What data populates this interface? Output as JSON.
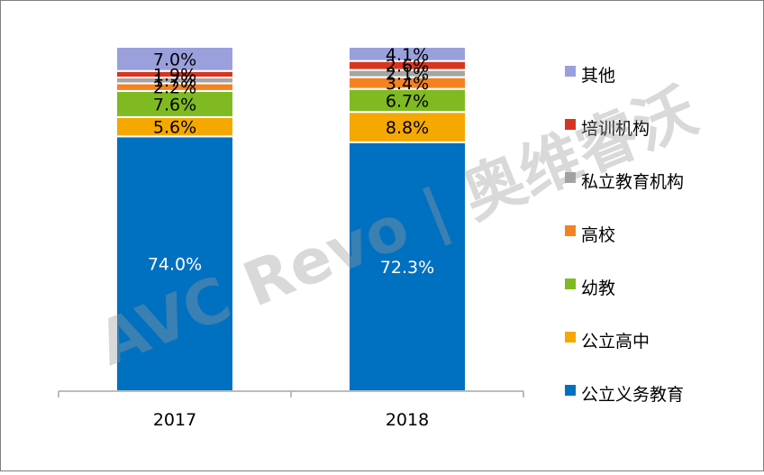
{
  "watermark": {
    "text": "AVC Revo | 奥维睿沃"
  },
  "chart_data": {
    "type": "bar",
    "stacked": true,
    "categories": [
      "2017",
      "2018"
    ],
    "value_format": "percent_1dp",
    "series": [
      {
        "name": "公立义务教育",
        "color": "#0070c0",
        "label_color": "#ffffff",
        "values": [
          74.0,
          72.3
        ],
        "labels": [
          "74.0%",
          "72.3%"
        ]
      },
      {
        "name": "公立高中",
        "color": "#f5a800",
        "label_color": "#000000",
        "values": [
          5.6,
          8.8
        ],
        "labels": [
          "5.6%",
          "8.8%"
        ]
      },
      {
        "name": "幼教",
        "color": "#7fba22",
        "label_color": "#000000",
        "values": [
          7.6,
          6.7
        ],
        "labels": [
          "7.6%",
          "6.7%"
        ]
      },
      {
        "name": "高校",
        "color": "#f58220",
        "label_color": "#000000",
        "values": [
          2.2,
          3.4
        ],
        "labels": [
          "2.2%",
          "3.4%"
        ]
      },
      {
        "name": "私立教育机构",
        "color": "#a5a5a5",
        "label_color": "#000000",
        "values": [
          1.7,
          2.1
        ],
        "labels": [
          "1.7%",
          "2.1%"
        ]
      },
      {
        "name": "培训机构",
        "color": "#d6361f",
        "label_color": "#000000",
        "values": [
          1.9,
          2.6
        ],
        "labels": [
          "1.9%",
          "2.6%"
        ]
      },
      {
        "name": "其他",
        "color": "#9aa0dc",
        "label_color": "#000000",
        "values": [
          7.0,
          4.1
        ],
        "labels": [
          "7.0%",
          "4.1%"
        ]
      }
    ],
    "legend_position": "right",
    "legend_order": [
      "其他",
      "培训机构",
      "私立教育机构",
      "高校",
      "幼教",
      "公立高中",
      "公立义务教育"
    ],
    "grid": false
  }
}
